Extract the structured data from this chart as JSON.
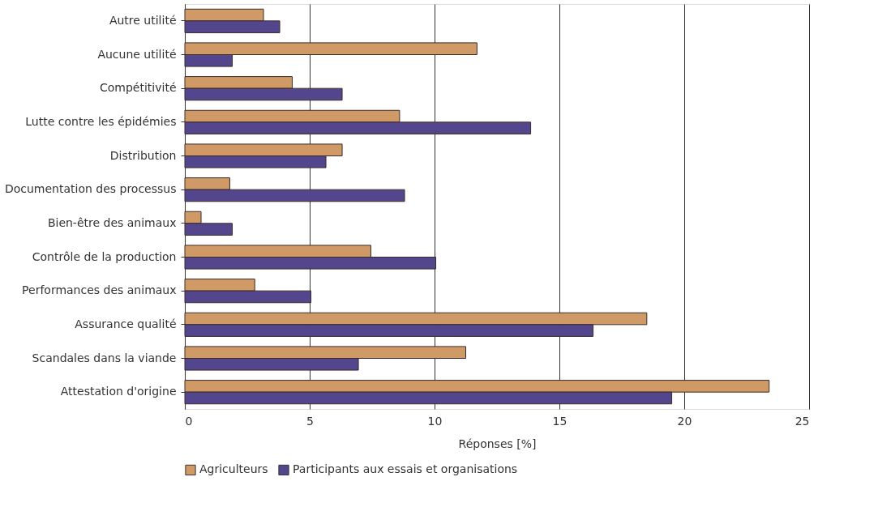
{
  "chart_data": {
    "type": "bar",
    "orientation": "horizontal",
    "xlabel": "Réponses [%]",
    "categories": [
      "Autre utilité",
      "Aucune utilité",
      "Compétitivité",
      "Lutte contre les épidémies",
      "Distribution",
      "Documentation des processus",
      "Bien-être des animaux",
      "Contrôle de la production",
      "Performances des animaux",
      "Assurance qualité",
      "Scandales dans la viande",
      "Attestation d'origine"
    ],
    "series": [
      {
        "name": "Agriculteurs",
        "color": "#d09a66",
        "values": [
          3.15,
          11.7,
          4.3,
          8.6,
          6.3,
          1.8,
          0.65,
          7.45,
          2.8,
          18.5,
          11.25,
          23.4
        ]
      },
      {
        "name": "Participants aux essais et organisations",
        "color": "#54468c",
        "values": [
          3.8,
          1.9,
          6.3,
          13.85,
          5.65,
          8.8,
          1.9,
          10.05,
          5.05,
          16.35,
          6.95,
          19.5
        ]
      }
    ],
    "xlim": [
      0,
      25
    ],
    "xticks": [
      0,
      5,
      10,
      15,
      20,
      25
    ],
    "grid": "x",
    "legend": "bottom"
  }
}
